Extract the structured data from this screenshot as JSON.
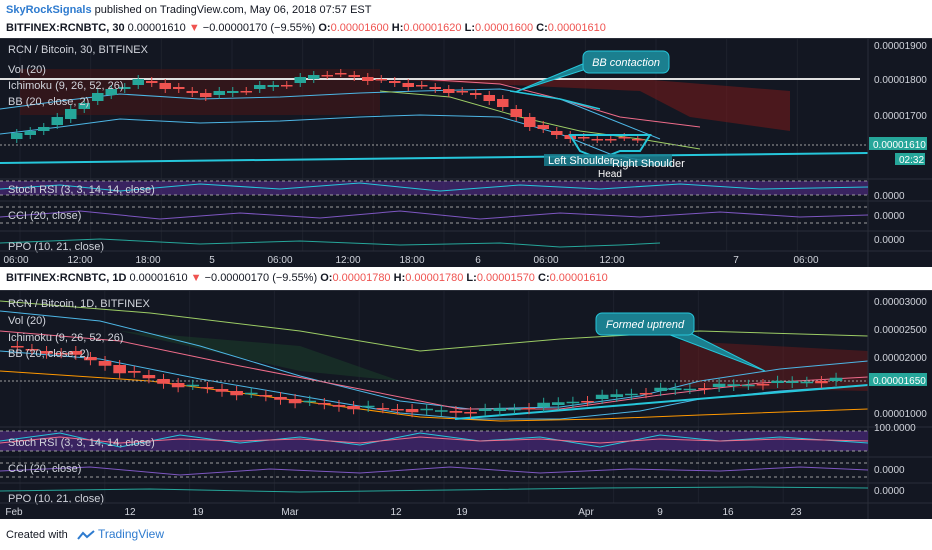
{
  "header": {
    "author": "SkyRockSignals",
    "published": "published on TradingView.com, May 06, 2018 07:57 EST"
  },
  "chart1": {
    "symbol": "BITFINEX:RCNBTC, 30",
    "last": "0.00001610",
    "change": "−0.00000170 (−9.55%)",
    "o": "0.00001600",
    "h": "0.00001620",
    "l": "0.00001600",
    "c": "0.00001610",
    "legend": [
      "RCN / Bitcoin, 30, BITFINEX",
      "Vol (20)",
      "Ichimoku (9, 26, 52, 26)",
      "BB (20, close, 2)"
    ],
    "callout": "BB contaction",
    "labels": [
      "Left Shoulder",
      "Right Shoulder",
      "Head"
    ],
    "price_ticks": [
      "0.00001900",
      "0.00001800",
      "0.00001700",
      "0.00001610",
      "02:32"
    ],
    "stoch": "Stoch RSI (3, 3, 14, 14, close)",
    "cci": "CCI (20, close)",
    "ppo": "PPO (10, 21, close)",
    "sub_ticks": [
      "0.0000",
      "0.0000",
      "0.0000"
    ],
    "time_ticks": [
      "06:00",
      "12:00",
      "18:00",
      "5",
      "06:00",
      "12:00",
      "18:00",
      "6",
      "06:00",
      "12:00",
      "7",
      "06:00"
    ]
  },
  "chart2": {
    "symbol": "BITFINEX:RCNBTC, 1D",
    "last": "0.00001610",
    "change": "−0.00000170 (−9.55%)",
    "o": "0.00001780",
    "h": "0.00001780",
    "l": "0.00001570",
    "c": "0.00001610",
    "legend": [
      "RCN / Bitcoin, 1D, BITFINEX",
      "Vol (20)",
      "Ichimoku (9, 26, 52, 26)",
      "BB (20, close, 2)"
    ],
    "callout": "Formed uptrend",
    "price_ticks": [
      "0.00003000",
      "0.00002500",
      "0.00002000",
      "0.00001650",
      "0.00001000"
    ],
    "stoch": "Stoch RSI (3, 3, 14, 14, close)",
    "stoch_tick": "100.0000",
    "cci": "CCI (20, close)",
    "ppo": "PPO (10, 21, close)",
    "sub_ticks": [
      "0.0000",
      "0.0000"
    ],
    "time_ticks": [
      "Feb",
      "12",
      "19",
      "Mar",
      "12",
      "19",
      "Apr",
      "9",
      "16",
      "23"
    ]
  },
  "footer": {
    "created": "Created with",
    "brand": "TradingView"
  },
  "colors": {
    "bg": "#131722",
    "up": "#26a69a",
    "down": "#ef5350",
    "accent": "#26c6da",
    "grid": "#2a2e39"
  }
}
